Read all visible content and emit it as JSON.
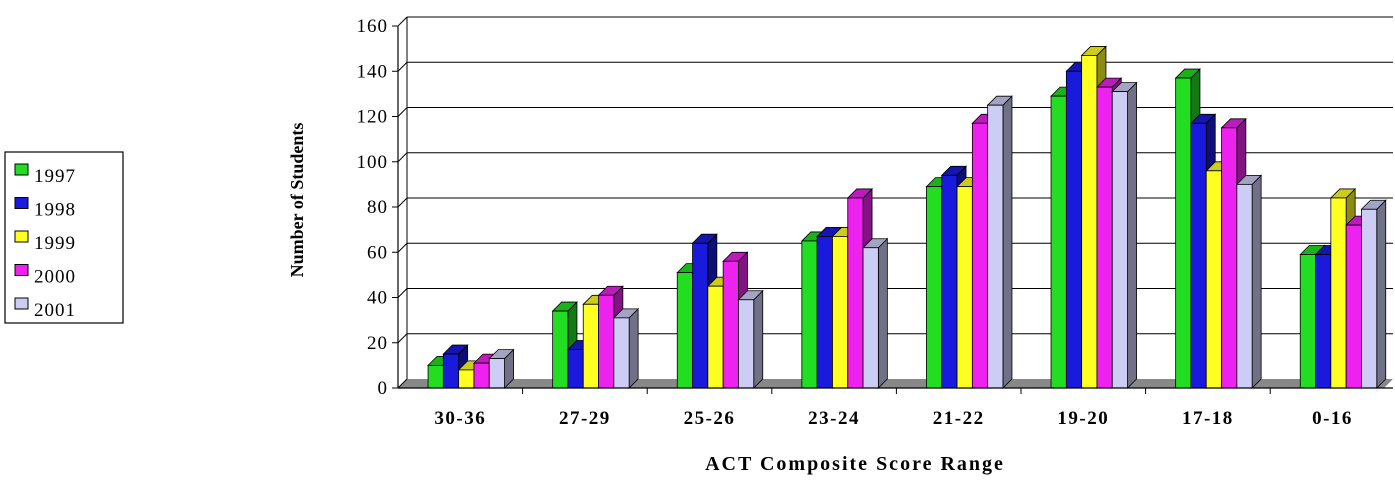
{
  "chart_data": {
    "type": "bar",
    "xlabel": "ACT Composite Score Range",
    "ylabel": "Number of Students",
    "ylim": [
      0,
      160
    ],
    "yticks": [
      0,
      20,
      40,
      60,
      80,
      100,
      120,
      140,
      160
    ],
    "grid": true,
    "legend_position": "left",
    "categories": [
      "30-36",
      "27-29",
      "25-26",
      "23-24",
      "21-22",
      "19-20",
      "17-18",
      "0-16"
    ],
    "series": [
      {
        "name": "1997",
        "color": "#22dd22",
        "values": [
          10,
          34,
          51,
          65,
          89,
          129,
          137,
          59
        ]
      },
      {
        "name": "1998",
        "color": "#1a1adc",
        "values": [
          15,
          17,
          64,
          67,
          94,
          140,
          117,
          59
        ]
      },
      {
        "name": "1999",
        "color": "#ffff22",
        "values": [
          8,
          37,
          45,
          67,
          89,
          147,
          96,
          84
        ]
      },
      {
        "name": "2000",
        "color": "#ee22ee",
        "values": [
          11,
          41,
          56,
          84,
          117,
          133,
          115,
          72
        ]
      },
      {
        "name": "2001",
        "color": "#ccccf4",
        "values": [
          13,
          31,
          39,
          62,
          125,
          131,
          90,
          79
        ]
      }
    ]
  }
}
